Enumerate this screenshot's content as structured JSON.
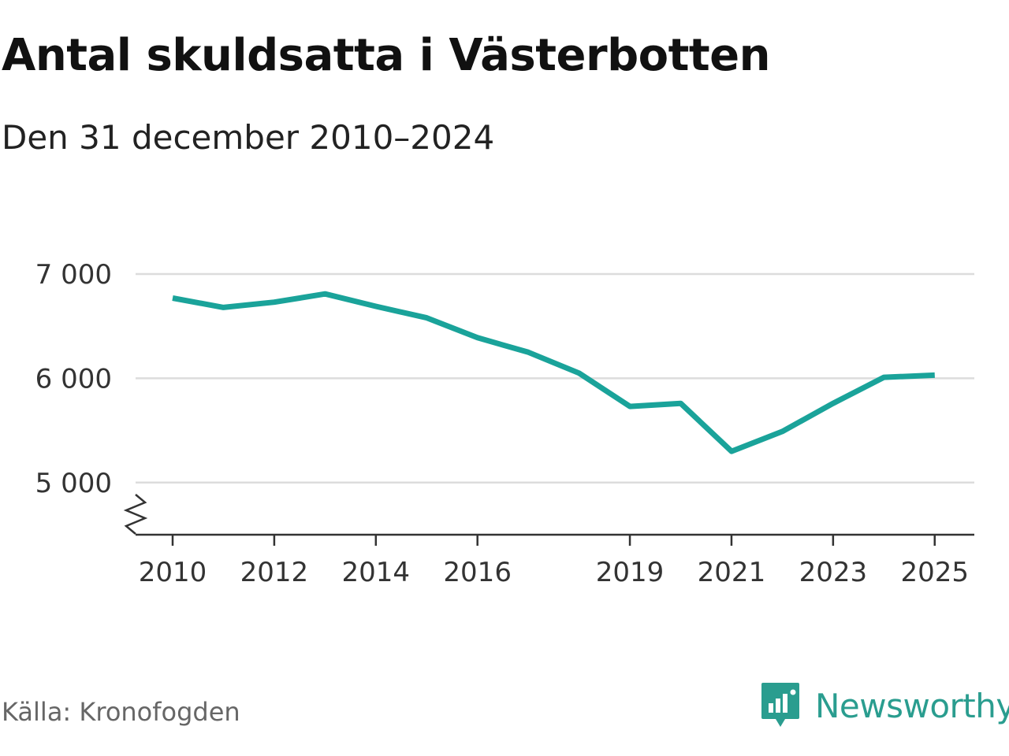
{
  "title": "Antal skuldsatta i Västerbotten",
  "subtitle": "Den 31 december 2010–2024",
  "source": "Källa: Kronofogden",
  "brand": {
    "name": "Newsworthy",
    "icon": "newsworthy-logo-icon"
  },
  "colors": {
    "line": "#1aa39a",
    "grid": "#dcdcdc",
    "axis": "#333333",
    "brand": "#2a9d8f"
  },
  "chart_data": {
    "type": "line",
    "title": "Antal skuldsatta i Västerbotten",
    "subtitle": "Den 31 december 2010–2024",
    "xlabel": "",
    "ylabel": "",
    "x": [
      2010,
      2011,
      2012,
      2013,
      2014,
      2015,
      2016,
      2017,
      2018,
      2019,
      2020,
      2021,
      2022,
      2023,
      2024,
      2025
    ],
    "series": [
      {
        "name": "Antal skuldsatta",
        "values": [
          6770,
          6680,
          6730,
          6810,
          6690,
          6580,
          6390,
          6250,
          6050,
          5730,
          5760,
          5300,
          5490,
          5760,
          6010,
          6030
        ]
      }
    ],
    "xticks": [
      2010,
      2012,
      2014,
      2016,
      2019,
      2021,
      2023,
      2025
    ],
    "xtick_labels": [
      "2010",
      "2012",
      "2014",
      "2016",
      "2019",
      "2021",
      "2023",
      "2025"
    ],
    "yticks": [
      5000,
      6000,
      7000
    ],
    "ytick_labels": [
      "5 000",
      "6 000",
      "7 000"
    ],
    "xlim": [
      2009.25,
      2025.75
    ],
    "ylim": [
      4500,
      7000
    ],
    "grid": true,
    "axis_break": true
  }
}
